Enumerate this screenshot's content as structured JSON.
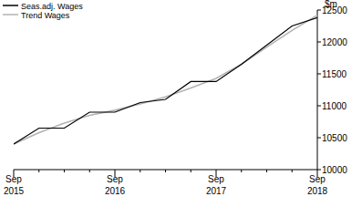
{
  "chart_data": {
    "type": "line",
    "ylabel": "$m",
    "categories": [
      "Sep 2015",
      null,
      null,
      null,
      "Sep 2016",
      null,
      null,
      null,
      "Sep 2017",
      null,
      null,
      null,
      "Sep 2018"
    ],
    "series": [
      {
        "name": "Seas.adj. Wages",
        "color": "#000000",
        "values": [
          10400,
          10650,
          10650,
          10900,
          10900,
          11050,
          11100,
          11380,
          11380,
          11650,
          11950,
          12250,
          12380
        ]
      },
      {
        "name": "Trend Wages",
        "color": "#b3b3b3",
        "values": [
          10400,
          10580,
          10730,
          10850,
          10930,
          11030,
          11140,
          11280,
          11430,
          11650,
          11920,
          12180,
          12420
        ]
      }
    ],
    "ylim": [
      10000,
      12500
    ],
    "yticks": [
      10000,
      10500,
      11000,
      11500,
      12000,
      12500
    ],
    "legend": "top-left",
    "grid": false
  }
}
